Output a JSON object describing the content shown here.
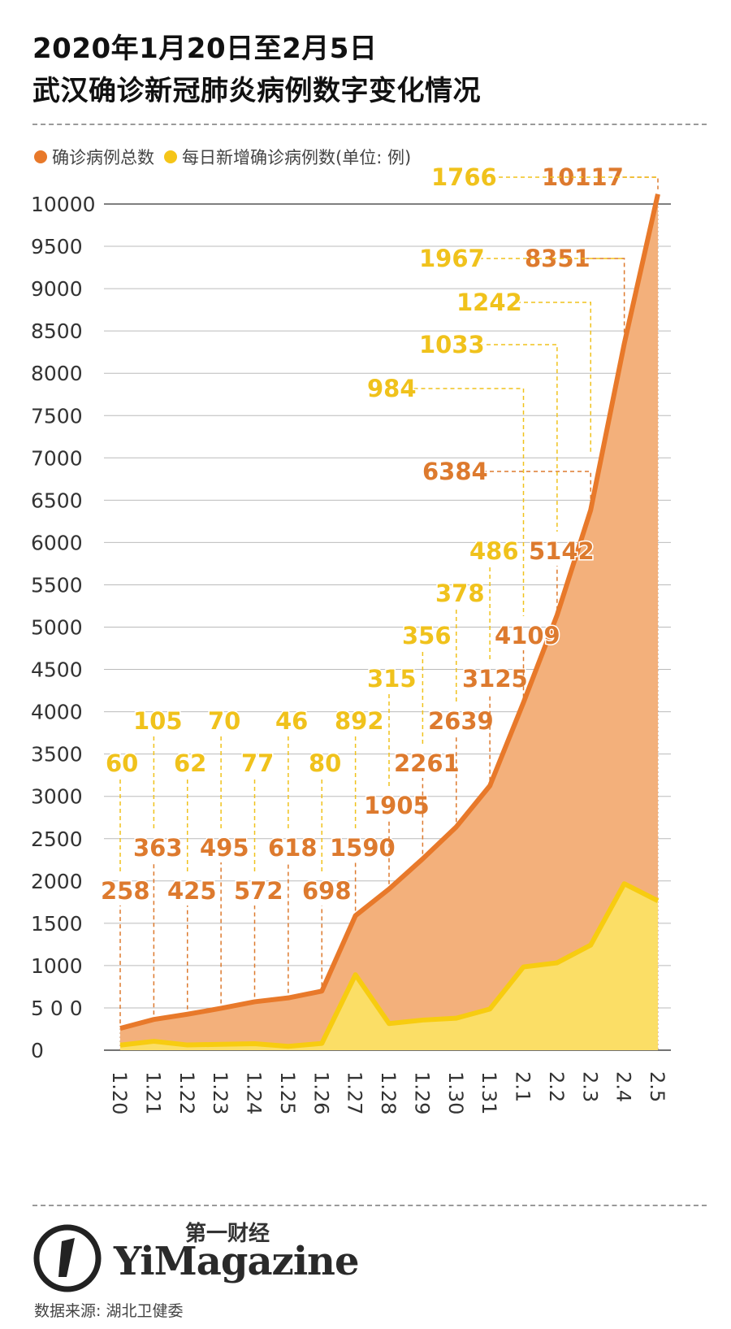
{
  "title_line1": "2020年1月20日至2月5日",
  "title_line2": "武汉确诊新冠肺炎病例数字变化情况",
  "legend": [
    {
      "label": "确诊病例总数",
      "color": "#e8792a"
    },
    {
      "label": "每日新增确诊病例数(单位: 例)",
      "color": "#f5c518"
    }
  ],
  "brand": {
    "cn": "第一财经",
    "en": "YiMagazine"
  },
  "source": "数据来源: 湖北卫健委",
  "colors": {
    "total_line": "#e8792a",
    "total_fill": "#f3b07b",
    "daily_line": "#f7cc10",
    "daily_fill": "#fbde66",
    "total_label": "#dd7a2e",
    "daily_label": "#f0c21c",
    "grid": "#bbbbbb"
  },
  "chart_data": {
    "type": "area",
    "categories": [
      "1.20",
      "1.21",
      "1.22",
      "1.23",
      "1.24",
      "1.25",
      "1.26",
      "1.27",
      "1.28",
      "1.29",
      "1.30",
      "1.31",
      "2.1",
      "2.2",
      "2.3",
      "2.4",
      "2.5"
    ],
    "series": [
      {
        "name": "确诊病例总数",
        "values": [
          258,
          363,
          425,
          495,
          572,
          618,
          698,
          1590,
          1905,
          2261,
          2639,
          3125,
          4109,
          5142,
          6384,
          8351,
          10117
        ]
      },
      {
        "name": "每日新增确诊病例数",
        "values": [
          60,
          105,
          62,
          70,
          77,
          46,
          80,
          892,
          315,
          356,
          378,
          486,
          984,
          1033,
          1242,
          1967,
          1766
        ]
      }
    ],
    "yticks": [
      "0",
      "5 0 0",
      "1000",
      "1500",
      "2000",
      "2500",
      "3000",
      "3500",
      "4000",
      "4500",
      "5000",
      "5500",
      "6000",
      "6500",
      "7000",
      "7500",
      "8000",
      "8500",
      "9000",
      "9500",
      "10000"
    ],
    "ylim": [
      0,
      10000
    ],
    "grid": true,
    "legend_position": "top-left"
  }
}
